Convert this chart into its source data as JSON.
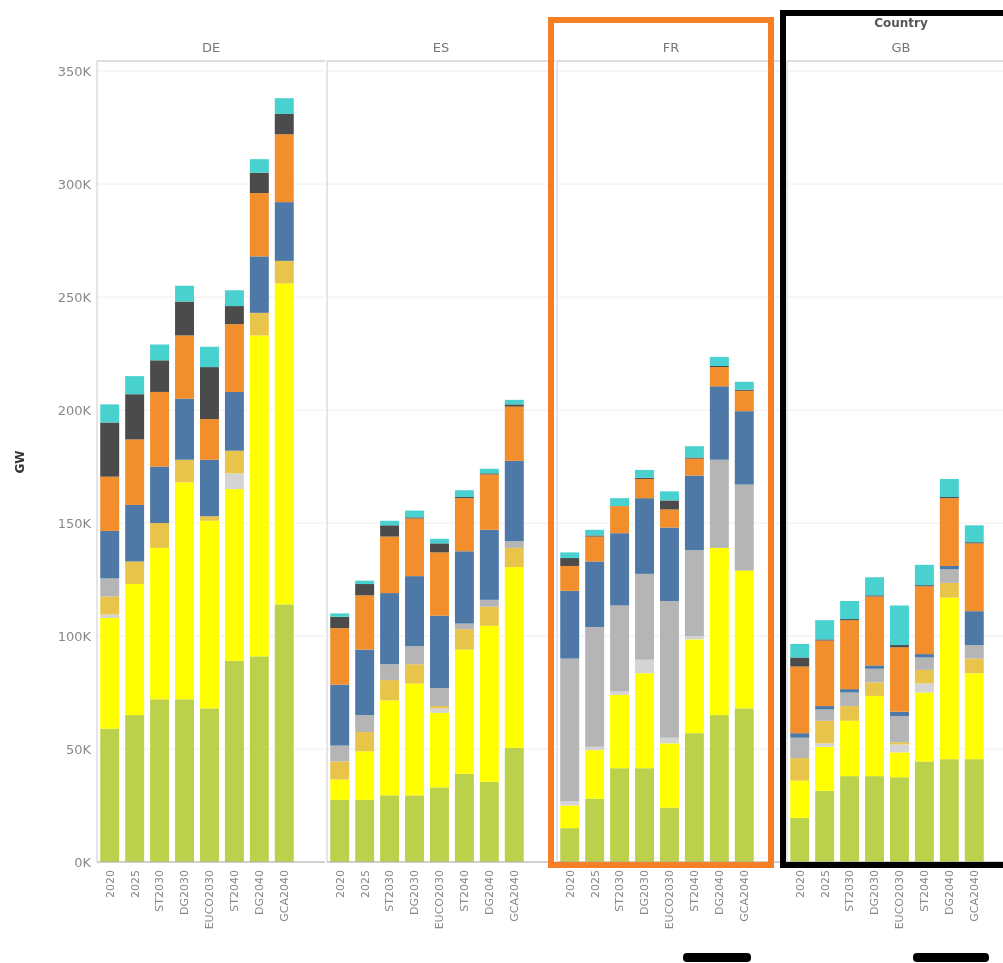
{
  "chart_data": [
    {
      "type": "bar",
      "stacked": true,
      "title": "DE",
      "ylabel": "GW",
      "grid": "y",
      "categories": [
        "2020",
        "2025",
        "ST2030",
        "DG2030",
        "EUCO2030",
        "ST2040",
        "DG2040",
        "GCA2040"
      ],
      "ylim": [
        0,
        354000
      ],
      "yticks": [
        {
          "value": 0,
          "label": "0K"
        },
        {
          "value": 50000,
          "label": "50K"
        },
        {
          "value": 100000,
          "label": "100K"
        },
        {
          "value": 150000,
          "label": "150K"
        },
        {
          "value": 200000,
          "label": "200K"
        },
        {
          "value": 250000,
          "label": "250K"
        },
        {
          "value": 300000,
          "label": "300K"
        },
        {
          "value": 350000,
          "label": "350K"
        }
      ],
      "series": [
        {
          "color": "#bcd14b",
          "values": [
            59000,
            65000,
            72000,
            72000,
            68000,
            89000,
            91000,
            114000
          ]
        },
        {
          "color": "#ffff00",
          "values": [
            49000,
            58000,
            67000,
            96000,
            83000,
            76000,
            142000,
            142000
          ]
        },
        {
          "color": "#d4d4d4",
          "values": [
            1500,
            0,
            0,
            0,
            0,
            7000,
            0,
            0
          ]
        },
        {
          "color": "#e9c44a",
          "values": [
            8000,
            10000,
            11000,
            10000,
            2000,
            10000,
            10000,
            10000
          ]
        },
        {
          "color": "#b5b5b5",
          "values": [
            8000,
            0,
            0,
            0,
            0,
            0,
            0,
            0
          ]
        },
        {
          "color": "#4e79a7",
          "values": [
            21000,
            25000,
            25000,
            27000,
            25000,
            26000,
            25000,
            26000
          ]
        },
        {
          "color": "#f28e2b",
          "values": [
            24000,
            29000,
            33000,
            28000,
            18000,
            30000,
            28000,
            30000
          ]
        },
        {
          "color": "#4b4b4b",
          "values": [
            24000,
            20000,
            14000,
            15000,
            23000,
            8000,
            9000,
            9000
          ]
        },
        {
          "color": "#48d1cf",
          "values": [
            8000,
            8000,
            7000,
            7000,
            9000,
            7000,
            6000,
            7000
          ]
        }
      ]
    },
    {
      "type": "bar",
      "stacked": true,
      "title": "ES",
      "grid": "y",
      "tick_labels": "x",
      "categories": [
        "2020",
        "2025",
        "ST2030",
        "DG2030",
        "EUCO2030",
        "ST2040",
        "DG2040",
        "GCA2040"
      ],
      "ylim": [
        0,
        354000
      ],
      "series": [
        {
          "color": "#bcd14b",
          "values": [
            27500,
            27500,
            29500,
            29500,
            33000,
            39000,
            35500,
            50500
          ]
        },
        {
          "color": "#ffff00",
          "values": [
            9000,
            21500,
            42000,
            49500,
            33000,
            55000,
            69000,
            80000
          ]
        },
        {
          "color": "#d4d4d4",
          "values": [
            0,
            0,
            0,
            0,
            2000,
            0,
            0,
            0
          ]
        },
        {
          "color": "#e9c44a",
          "values": [
            8000,
            8500,
            9000,
            8500,
            1000,
            9000,
            8500,
            8500
          ]
        },
        {
          "color": "#b5b5b5",
          "values": [
            7000,
            7500,
            7000,
            8000,
            8000,
            2500,
            3000,
            3000
          ]
        },
        {
          "color": "#4e79a7",
          "values": [
            27000,
            29000,
            31500,
            31000,
            32000,
            32000,
            31000,
            35500
          ]
        },
        {
          "color": "#f28e2b",
          "values": [
            25000,
            24000,
            25000,
            25500,
            28000,
            23500,
            24500,
            24000
          ]
        },
        {
          "color": "#4b4b4b",
          "values": [
            5000,
            5000,
            5000,
            500,
            4000,
            500,
            500,
            1000
          ]
        },
        {
          "color": "#48d1cf",
          "values": [
            1500,
            1500,
            2000,
            3000,
            2000,
            3000,
            2000,
            2000
          ]
        }
      ]
    },
    {
      "type": "bar",
      "stacked": true,
      "title": "FR",
      "grid": "y",
      "tick_labels": "x",
      "categories": [
        "2020",
        "2025",
        "ST2030",
        "DG2030",
        "EUCO2030",
        "ST2040",
        "DG2040",
        "GCA2040"
      ],
      "ylim": [
        0,
        354000
      ],
      "series": [
        {
          "color": "#bcd14b",
          "values": [
            15000,
            28000,
            41500,
            41500,
            24000,
            57000,
            65000,
            68000
          ]
        },
        {
          "color": "#ffff00",
          "values": [
            10000,
            21500,
            32500,
            42000,
            28500,
            41500,
            74000,
            61000
          ]
        },
        {
          "color": "#d4d4d4",
          "values": [
            2000,
            1500,
            1500,
            6000,
            2500,
            1500,
            0,
            0
          ]
        },
        {
          "color": "#b5b5b5",
          "values": [
            63000,
            53000,
            38000,
            38000,
            60500,
            38000,
            39000,
            38000
          ]
        },
        {
          "color": "#4e79a7",
          "values": [
            30000,
            29000,
            32000,
            33500,
            32500,
            33000,
            32500,
            32500
          ]
        },
        {
          "color": "#f28e2b",
          "values": [
            11000,
            11000,
            12000,
            8500,
            8000,
            7500,
            8500,
            9000
          ]
        },
        {
          "color": "#4b4b4b",
          "values": [
            3500,
            500,
            0,
            500,
            4000,
            500,
            500,
            500
          ]
        },
        {
          "color": "#48d1cf",
          "values": [
            2500,
            2500,
            3500,
            3500,
            4000,
            5000,
            4000,
            3500
          ]
        }
      ]
    },
    {
      "type": "bar",
      "stacked": true,
      "title": "GB",
      "grid": "y",
      "tick_labels": "x",
      "annotations": [
        "Country"
      ],
      "categories": [
        "2020",
        "2025",
        "ST2030",
        "DG2030",
        "EUCO2030",
        "ST2040",
        "DG2040",
        "GCA2040"
      ],
      "ylim": [
        0,
        354000
      ],
      "series": [
        {
          "color": "#bcd14b",
          "values": [
            19500,
            31500,
            38000,
            38000,
            37500,
            44500,
            45500,
            45500
          ]
        },
        {
          "color": "#ffff00",
          "values": [
            16500,
            19500,
            24500,
            35500,
            11000,
            30500,
            71500,
            38000
          ]
        },
        {
          "color": "#d4d4d4",
          "values": [
            0,
            1500,
            0,
            0,
            3500,
            4000,
            0,
            0
          ]
        },
        {
          "color": "#e9c44a",
          "values": [
            10000,
            10000,
            6500,
            6000,
            1000,
            6000,
            6500,
            6500
          ]
        },
        {
          "color": "#b5b5b5",
          "values": [
            9000,
            5000,
            6000,
            6000,
            11500,
            5500,
            6000,
            6000
          ]
        },
        {
          "color": "#4e79a7",
          "values": [
            2000,
            1500,
            1500,
            1500,
            2000,
            1500,
            1500,
            15000
          ]
        },
        {
          "color": "#f28e2b",
          "values": [
            29500,
            29000,
            30500,
            30500,
            28500,
            30000,
            30000,
            30000
          ]
        },
        {
          "color": "#4b4b4b",
          "values": [
            4000,
            500,
            500,
            500,
            1000,
            500,
            500,
            500
          ]
        },
        {
          "color": "#48d1cf",
          "values": [
            6000,
            8500,
            8000,
            8000,
            17500,
            9000,
            8000,
            7500
          ]
        }
      ]
    }
  ]
}
